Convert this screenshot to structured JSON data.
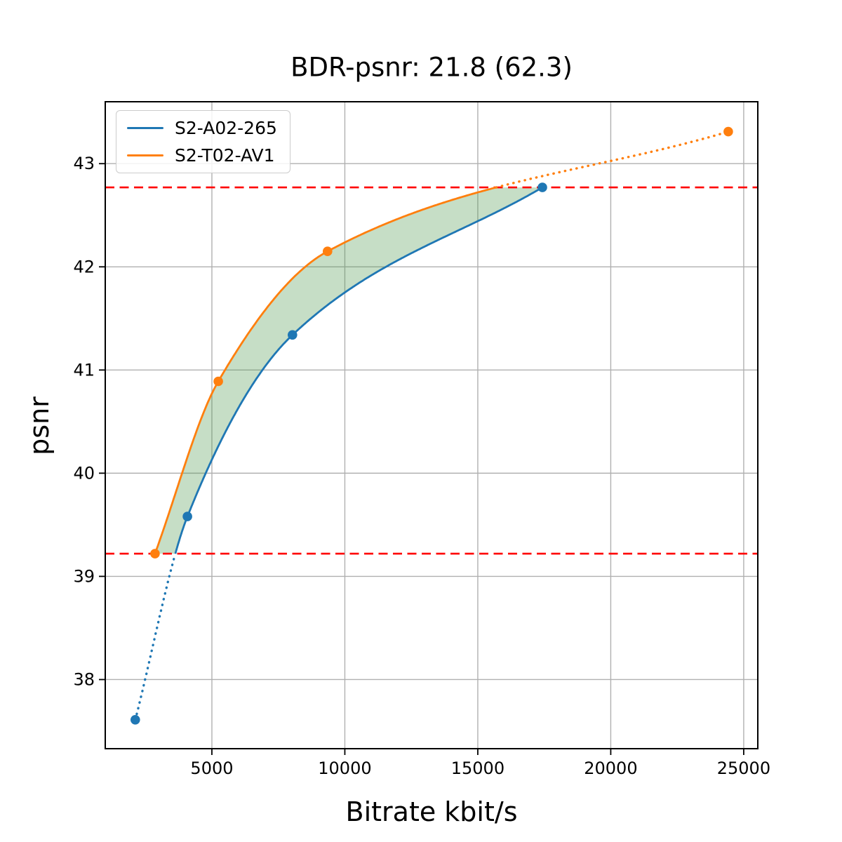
{
  "figure": {
    "title": "BDR-psnr: 21.8 (62.3)",
    "xlabel": "Bitrate kbit/s",
    "ylabel": "psnr"
  },
  "chart_data": {
    "type": "line",
    "title": "BDR-psnr: 21.8 (62.3)",
    "xlabel": "Bitrate kbit/s",
    "ylabel": "psnr",
    "xlim": [
      990,
      25530
    ],
    "ylim": [
      37.33,
      43.6
    ],
    "xticks": [
      5000,
      10000,
      15000,
      20000,
      25000
    ],
    "yticks": [
      38,
      39,
      40,
      41,
      42,
      43
    ],
    "grid": true,
    "grid_color": "#b0b0b0",
    "spine_color": "#000000",
    "legend_position": "upper left",
    "series": [
      {
        "name": "S2-A02-265",
        "color": "#1f77b4",
        "marker": "circle",
        "points": [
          [
            2120,
            37.61
          ],
          [
            4080,
            39.58
          ],
          [
            8030,
            41.34
          ],
          [
            17430,
            42.77
          ]
        ]
      },
      {
        "name": "S2-T02-AV1",
        "color": "#ff7f0e",
        "marker": "circle",
        "points": [
          [
            2860,
            39.22
          ],
          [
            5240,
            40.89
          ],
          [
            9350,
            42.15
          ],
          [
            24420,
            43.31
          ]
        ]
      }
    ],
    "hlines": [
      {
        "psnr": 42.77,
        "color": "#ff0000",
        "style": "dashed"
      },
      {
        "psnr": 39.22,
        "color": "#ff0000",
        "style": "dashed"
      }
    ],
    "overlap_interval_psnr": [
      39.22,
      42.77
    ],
    "fill_between": {
      "color": "#4d994d",
      "opacity": 0.32
    }
  }
}
